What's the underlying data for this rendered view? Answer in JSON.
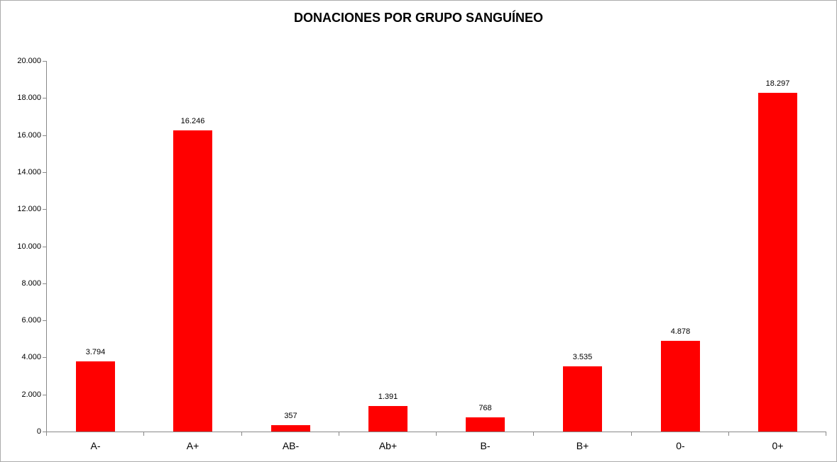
{
  "chart_data": {
    "type": "bar",
    "title": "DONACIONES POR GRUPO SANGUÍNEO",
    "categories": [
      "A-",
      "A+",
      "AB-",
      "Ab+",
      "B-",
      "B+",
      "0-",
      "0+"
    ],
    "values": [
      3794,
      16246,
      357,
      1391,
      768,
      3535,
      4878,
      18297
    ],
    "data_labels": [
      "3.794",
      "16.246",
      "357",
      "1.391",
      "768",
      "3.535",
      "4.878",
      "18.297"
    ],
    "xlabel": "",
    "ylabel": "",
    "ylim": [
      0,
      20000
    ],
    "y_tick_step": 2000,
    "y_tick_labels": [
      "0",
      "2.000",
      "4.000",
      "6.000",
      "8.000",
      "10.000",
      "12.000",
      "14.000",
      "16.000",
      "18.000",
      "20.000"
    ],
    "grid": false,
    "legend_position": "none",
    "bar_color": "#ff0000"
  },
  "colors": {
    "bar": "#ff0000",
    "axis": "#898989",
    "frame_border": "#ababab",
    "text": "#000000"
  }
}
